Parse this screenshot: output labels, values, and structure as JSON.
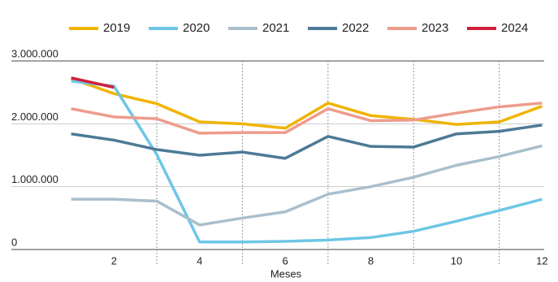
{
  "chart_data": {
    "type": "line",
    "x": [
      1,
      2,
      3,
      4,
      5,
      6,
      7,
      8,
      9,
      10,
      11,
      12
    ],
    "xlim": [
      0.95,
      12.05
    ],
    "xticks": [
      2,
      4,
      6,
      8,
      10,
      12
    ],
    "xgrid": [
      3,
      5,
      7,
      9,
      11
    ],
    "xlabel": "Meses",
    "ylim": [
      0,
      3000000
    ],
    "yticks": [
      0,
      {
        "value": 1000000,
        "label": "1.000.000"
      },
      {
        "value": 2000000,
        "label": "2.000.000"
      },
      {
        "value": 3000000,
        "label": "3.000.000"
      }
    ],
    "grid": true,
    "legend": "top",
    "series": [
      {
        "name": "2019",
        "color": "#f0b400",
        "values": [
          2720000,
          2480000,
          2320000,
          2030000,
          2000000,
          1930000,
          2330000,
          2130000,
          2070000,
          1990000,
          2030000,
          2280000
        ]
      },
      {
        "name": "2020",
        "color": "#6ec6e6",
        "values": [
          2680000,
          2600000,
          1510000,
          120000,
          120000,
          130000,
          150000,
          190000,
          290000,
          450000,
          620000,
          800000
        ]
      },
      {
        "name": "2021",
        "color": "#a9bfcc",
        "values": [
          800000,
          800000,
          770000,
          390000,
          500000,
          600000,
          880000,
          1000000,
          1150000,
          1340000,
          1480000,
          1650000
        ]
      },
      {
        "name": "2022",
        "color": "#4d7a96",
        "values": [
          1840000,
          1740000,
          1590000,
          1500000,
          1550000,
          1450000,
          1800000,
          1640000,
          1630000,
          1840000,
          1880000,
          1980000
        ]
      },
      {
        "name": "2023",
        "color": "#ed9c8c",
        "values": [
          2240000,
          2110000,
          2080000,
          1850000,
          1860000,
          1860000,
          2240000,
          2050000,
          2060000,
          2170000,
          2270000,
          2330000
        ]
      },
      {
        "name": "2024",
        "color": "#d01f3c",
        "values": [
          2730000,
          2580000,
          null,
          null,
          null,
          null,
          null,
          null,
          null,
          null,
          null,
          null
        ]
      }
    ]
  }
}
